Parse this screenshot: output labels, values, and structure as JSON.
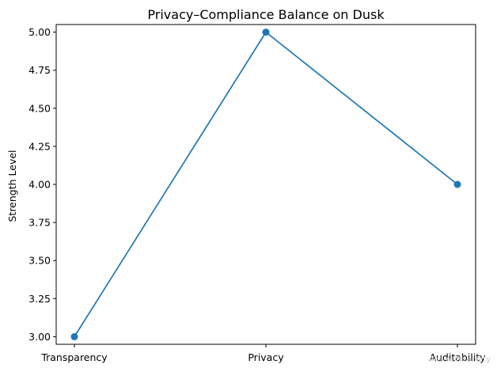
{
  "chart_data": {
    "type": "line",
    "title": "Privacy–Compliance Balance on Dusk",
    "xlabel": "",
    "ylabel": "Strength Level",
    "categories": [
      "Transparency",
      "Privacy",
      "Auditability"
    ],
    "series": [
      {
        "values": [
          3,
          5,
          4
        ],
        "color": "#1f77b4",
        "marker": "circle"
      }
    ],
    "ylim": [
      2.95,
      5.05
    ],
    "yticks": [
      "3.00",
      "3.25",
      "3.50",
      "3.75",
      "4.00",
      "4.25",
      "4.50",
      "4.75",
      "5.00"
    ],
    "grid": false,
    "legend": "none"
  },
  "watermark": "Ads Auditability"
}
